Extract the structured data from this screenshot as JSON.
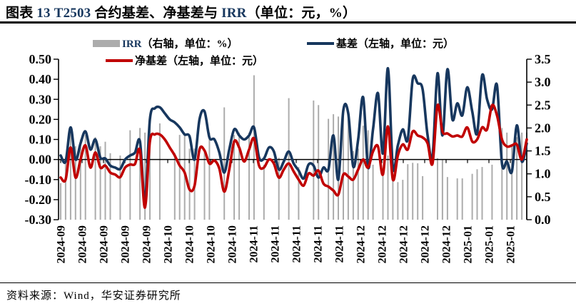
{
  "figure": {
    "title_plain": "图表 13 T2503 合约基差、净基差与 IRR（单位：元，%）",
    "title_segments": [
      {
        "text": "图表 ",
        "tone": "ink"
      },
      {
        "text": "13 T2503 ",
        "tone": "navy"
      },
      {
        "text": "合约基差、净基差与 ",
        "tone": "ink"
      },
      {
        "text": "IRR",
        "tone": "navy"
      },
      {
        "text": "（单位：元，%）",
        "tone": "ink"
      }
    ],
    "source_note": "资料来源：Wind，华安证券研究所"
  },
  "colors": {
    "navy": "#17375E",
    "red": "#C00000",
    "gray": "#ACACAC",
    "ink": "#000000"
  },
  "legend": {
    "items": [
      {
        "id": "irr",
        "swatch": "bar",
        "color": "#ACACAC",
        "prefix": "IRR",
        "text": "（右轴，单位：%）"
      },
      {
        "id": "basis",
        "swatch": "line",
        "color": "#17375E",
        "prefix": "",
        "text": "基差（左轴，单位：元）"
      },
      {
        "id": "net-basis",
        "swatch": "line",
        "color": "#C00000",
        "prefix": "",
        "text": "净基差（左轴，单位：元）"
      }
    ]
  },
  "chart_data": {
    "type": "combo",
    "x_tick_labels": [
      "2024-09",
      "2024-09",
      "2024-09",
      "2024-09",
      "2024-09",
      "2024-10",
      "2024-10",
      "2024-10",
      "2024-10",
      "2024-11",
      "2024-11",
      "2024-11",
      "2024-11",
      "2024-11",
      "2024-12",
      "2024-12",
      "2024-12",
      "2024-12",
      "2024-12",
      "2025-01",
      "2025-01",
      "2025-01"
    ],
    "left_axis": {
      "min": -0.3,
      "max": 0.5,
      "tick_labels": [
        "0.50",
        "0.40",
        "0.30",
        "0.20",
        "0.10",
        "0.00",
        "-0.10",
        "-0.20",
        "-0.30"
      ]
    },
    "right_axis": {
      "min": 0.0,
      "max": 3.5,
      "tick_labels": [
        "3.5",
        "3.0",
        "2.5",
        "2.0",
        "1.5",
        "1.0",
        "0.5",
        "0.0"
      ]
    },
    "series": [
      {
        "name": "IRR（右轴，单位：%）",
        "type": "bar",
        "axis": "right",
        "color": "#ACACAC",
        "values": [
          0.8,
          1.35,
          2.0,
          1.6,
          1.75,
          1.85,
          null,
          1.8,
          1.6,
          1.7,
          1.45,
          null,
          1.4,
          null,
          1.95,
          null,
          2.0,
          1.9,
          2.15,
          null,
          2.1,
          null,
          null,
          1.45,
          1.85,
          1.85,
          1.55,
          1.55,
          null,
          1.55,
          1.9,
          null,
          null,
          2.45,
          null,
          1.85,
          1.9,
          null,
          1.9,
          3.15,
          null,
          1.2,
          null,
          null,
          1.35,
          null,
          2.65,
          null,
          1.15,
          null,
          null,
          2.6,
          2.5,
          null,
          2.2,
          2.3,
          2.25,
          2.3,
          2.2,
          1.5,
          1.55,
          2.05,
          1.95,
          1.2,
          null,
          0.95,
          1.4,
          1.32,
          0.82,
          0.87,
          1.21,
          1.24,
          1.23,
          0.95,
          null,
          null,
          1.34,
          1.3,
          0.93,
          null,
          0.9,
          0.9,
          null,
          1.0,
          1.1,
          1.15,
          null,
          1.2,
          null,
          2.0,
          1.9,
          1.65,
          1.8,
          1.9,
          1.9
        ]
      },
      {
        "name": "基差（左轴，单位：元）",
        "type": "line",
        "axis": "left",
        "color": "#17375E",
        "values": [
          0.02,
          -0.01,
          0.16,
          0.0,
          0.08,
          0.14,
          0.05,
          0.1,
          0.01,
          0.005,
          -0.03,
          -0.04,
          -0.047,
          0.0,
          0.02,
          0.035,
          0.09,
          -0.21,
          0.2,
          0.255,
          0.26,
          0.23,
          0.2,
          0.185,
          0.16,
          0.125,
          0.115,
          0.0,
          0.2,
          0.24,
          0.11,
          0.1,
          0.035,
          -0.065,
          0.05,
          0.15,
          0.12,
          0.1,
          0.12,
          0.16,
          0.01,
          0.005,
          0.06,
          0.04,
          -0.05,
          -0.01,
          0.04,
          -0.02,
          -0.055,
          -0.095,
          -0.025,
          -0.03,
          -0.09,
          -0.04,
          -0.05,
          0.12,
          -0.1,
          0.245,
          0.23,
          -0.035,
          0.1,
          0.31,
          -0.04,
          0.15,
          0.33,
          0.03,
          0.455,
          -0.04,
          0.07,
          0.15,
          0.1,
          0.4,
          0.38,
          0.35,
          0.12,
          0.015,
          0.43,
          0.12,
          0.45,
          0.2,
          0.28,
          0.22,
          0.36,
          0.24,
          0.13,
          0.42,
          0.3,
          0.25,
          0.37,
          -0.02,
          -0.01,
          -0.06,
          0.17,
          -0.01,
          0.08
        ]
      },
      {
        "name": "净基差（左轴，单位：元）",
        "type": "line",
        "axis": "left",
        "color": "#C00000",
        "values": [
          -0.09,
          -0.1,
          0.06,
          -0.09,
          0.0,
          0.07,
          -0.04,
          0.035,
          -0.04,
          -0.03,
          -0.065,
          -0.075,
          -0.088,
          -0.04,
          -0.025,
          -0.022,
          0.045,
          -0.24,
          0.09,
          0.125,
          0.125,
          0.1,
          0.06,
          0.02,
          -0.03,
          -0.065,
          -0.15,
          -0.13,
          0.05,
          0.045,
          -0.02,
          -0.005,
          -0.045,
          -0.16,
          -0.05,
          0.09,
          0.06,
          -0.01,
          0.05,
          0.105,
          -0.03,
          -0.04,
          0.0,
          -0.02,
          -0.09,
          -0.05,
          -0.02,
          -0.06,
          -0.1,
          -0.13,
          -0.07,
          -0.08,
          -0.055,
          -0.12,
          -0.135,
          -0.155,
          -0.175,
          -0.075,
          -0.085,
          -0.1,
          -0.05,
          0.0,
          -0.04,
          0.04,
          0.065,
          -0.075,
          0.165,
          -0.1,
          0.02,
          0.075,
          0.05,
          0.14,
          0.12,
          0.11,
          0.08,
          -0.02,
          0.27,
          0.14,
          0.13,
          0.115,
          0.12,
          0.115,
          0.16,
          0.09,
          0.1,
          0.16,
          0.15,
          0.27,
          0.22,
          0.1,
          0.065,
          0.07,
          0.075,
          0.0,
          0.1
        ]
      }
    ]
  }
}
